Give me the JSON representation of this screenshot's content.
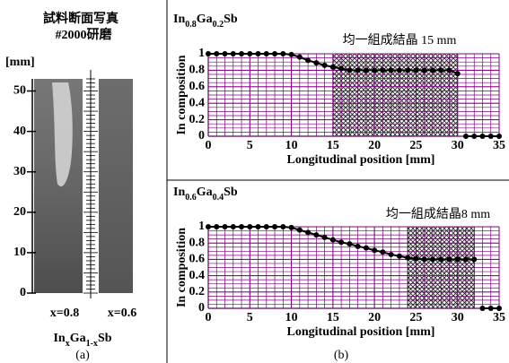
{
  "chart_data": [
    {
      "type": "image",
      "title": [
        "試料断面写真",
        "#2000研磨"
      ],
      "ylabel": "[mm]",
      "ylim": [
        0,
        53
      ],
      "yticks": [
        0,
        10,
        20,
        30,
        40,
        50
      ],
      "sample_labels": [
        "x=0.8",
        "x=0.6"
      ],
      "formula": [
        "In",
        "x",
        "Ga",
        "1-x",
        "Sb"
      ],
      "caption": "(a)"
    },
    {
      "type": "line",
      "title": [
        "In",
        "0.8",
        "Ga",
        "0.2",
        "Sb"
      ],
      "annotation": "均一組成結晶 15 mm",
      "xlabel": "Longitudinal position [mm]",
      "ylabel": "In composition",
      "x": [
        0,
        1,
        2,
        3,
        4,
        5,
        6,
        7,
        8,
        9,
        10,
        11,
        12,
        13,
        14,
        15,
        16,
        17,
        18,
        19,
        20,
        21,
        22,
        23,
        24,
        25,
        26,
        27,
        28,
        29,
        30,
        30.5,
        31,
        32,
        33,
        34,
        35
      ],
      "values": [
        1,
        1,
        1,
        1,
        1,
        1,
        1,
        1,
        1,
        1,
        0.99,
        0.96,
        0.92,
        0.89,
        0.86,
        0.84,
        0.82,
        0.8,
        0.8,
        0.8,
        0.8,
        0.8,
        0.8,
        0.8,
        0.8,
        0.8,
        0.8,
        0.8,
        0.8,
        0.8,
        0.76,
        null,
        0,
        0,
        0,
        0,
        0
      ],
      "color": "#000000",
      "grid_color": "#800080",
      "shaded_range": [
        15,
        30
      ],
      "xlim": [
        0,
        35
      ],
      "xticks": [
        0,
        5,
        10,
        15,
        20,
        25,
        30,
        35
      ],
      "ylim": [
        0,
        1
      ],
      "yticks": [
        0,
        0.2,
        0.4,
        0.6,
        0.8,
        1
      ]
    },
    {
      "type": "line",
      "title": [
        "In",
        "0.6",
        "Ga",
        "0.4",
        "Sb"
      ],
      "annotation": "均一組成結晶8 mm",
      "xlabel": "Longitudinal position [mm]",
      "ylabel": "In composition",
      "x": [
        0,
        1,
        2,
        3,
        4,
        5,
        6,
        7,
        8,
        9,
        10,
        11,
        12,
        13,
        14,
        15,
        16,
        17,
        18,
        19,
        20,
        21,
        22,
        23,
        24,
        25,
        26,
        27,
        28,
        29,
        30,
        31,
        32,
        32.5,
        33,
        34,
        35
      ],
      "values": [
        1,
        1,
        1,
        1,
        1,
        1,
        1,
        1,
        1,
        1,
        0.99,
        0.96,
        0.93,
        0.9,
        0.87,
        0.84,
        0.81,
        0.79,
        0.76,
        0.74,
        0.71,
        0.69,
        0.66,
        0.64,
        0.62,
        0.61,
        0.6,
        0.6,
        0.6,
        0.6,
        0.6,
        0.6,
        0.6,
        null,
        0,
        0,
        0
      ],
      "color": "#000000",
      "grid_color": "#800080",
      "shaded_range": [
        24,
        32
      ],
      "xlim": [
        0,
        35
      ],
      "xticks": [
        0,
        5,
        10,
        15,
        20,
        25,
        30,
        35
      ],
      "ylim": [
        0,
        1
      ],
      "yticks": [
        0,
        0.2,
        0.4,
        0.6,
        0.8,
        1
      ],
      "caption": "(b)"
    }
  ]
}
